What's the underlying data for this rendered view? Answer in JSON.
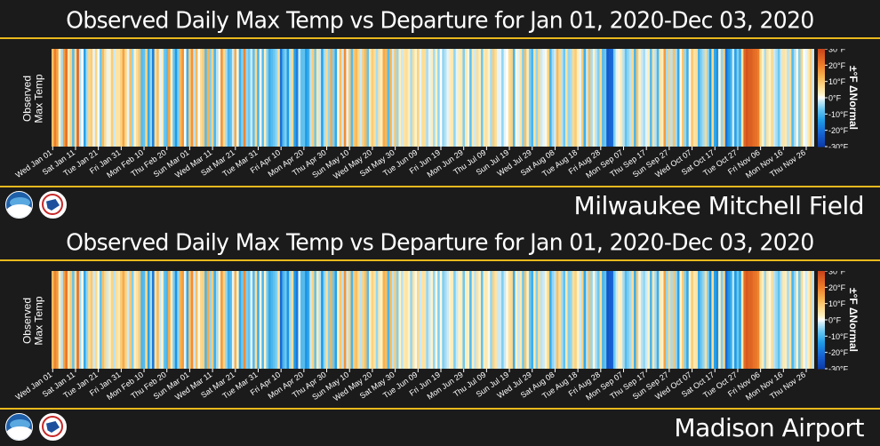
{
  "chart_data": [
    {
      "type": "heatmap",
      "title": "Observed Daily Max Temp vs Departure for Jan 01, 2020-Dec 03, 2020",
      "ylabel": [
        "Observed",
        "Max Temp"
      ],
      "station": "Milwaukee Mitchell Field",
      "x_tick_labels": [
        "Wed Jan 01",
        "Sat Jan 11",
        "Tue Jan 21",
        "Fri Jan 31",
        "Mon Feb 10",
        "Thu Feb 20",
        "Sun Mar 01",
        "Wed Mar 11",
        "Sat Mar 21",
        "Tue Mar 31",
        "Fri Apr 10",
        "Mon Apr 20",
        "Thu Apr 30",
        "Sun May 10",
        "Wed May 20",
        "Sat May 30",
        "Tue Jun 09",
        "Fri Jun 19",
        "Mon Jun 29",
        "Thu Jul 09",
        "Sun Jul 19",
        "Wed Jul 29",
        "Sat Aug 08",
        "Tue Aug 18",
        "Fri Aug 28",
        "Mon Sep 07",
        "Thu Sep 17",
        "Sun Sep 27",
        "Wed Oct 07",
        "Sat Oct 17",
        "Tue Oct 27",
        "Fri Nov 06",
        "Mon Nov 16",
        "Thu Nov 26"
      ],
      "colorbar": {
        "title": "±°F ΔNormal",
        "range": [
          -30,
          30
        ],
        "tick_labels": [
          "30°F",
          "20°F",
          "10°F",
          "0°F",
          "-10°F",
          "-20°F",
          "-30°F"
        ]
      },
      "departures": [
        11,
        20,
        15,
        2,
        -4,
        16,
        22,
        4,
        8,
        -9,
        7,
        24,
        -3,
        0,
        -13,
        -4,
        7,
        9,
        -1,
        8,
        0,
        -7,
        12,
        6,
        -1,
        2,
        9,
        -2,
        5,
        5,
        8,
        15,
        7,
        -1,
        11,
        -5,
        2,
        6,
        10,
        -9,
        -8,
        8,
        -12,
        -5,
        -18,
        6,
        11,
        -1,
        3,
        -7,
        -9,
        15,
        2,
        -7,
        -14,
        -6,
        12,
        17,
        0,
        -11,
        9,
        17,
        -3,
        12,
        0,
        6,
        9,
        -9,
        13,
        -6,
        8,
        -10,
        -3,
        1,
        17,
        7,
        -4,
        -10,
        -8,
        -2,
        14,
        1,
        -11,
        -6,
        19,
        -5,
        -7,
        -2,
        -8,
        7,
        -10,
        0,
        -9,
        3,
        -6,
        -11,
        -9,
        -7,
        -5,
        6,
        -20,
        -9,
        -6,
        -14,
        -3,
        7,
        -13,
        -18,
        -2,
        -8,
        -8,
        -14,
        -11,
        -3,
        9,
        -7,
        4,
        -2,
        -13,
        -4,
        7,
        -5,
        14,
        -6,
        -12,
        1,
        11,
        -2,
        18,
        -1,
        9,
        -9,
        10,
        12,
        7,
        -2,
        9,
        12,
        -8,
        4,
        9,
        6,
        -4,
        5,
        3,
        14,
        12,
        -9,
        13,
        -2,
        10,
        -5,
        3,
        -2,
        5,
        6,
        3,
        -4,
        6,
        2,
        8,
        -1,
        6,
        6,
        -4,
        -1,
        3,
        -4,
        2,
        -5,
        0,
        -5,
        -3,
        -1,
        3,
        4,
        -5,
        -1,
        3,
        4,
        -6,
        4,
        1,
        -8,
        4,
        -2,
        6,
        3,
        -7,
        4,
        5,
        2,
        -4,
        9,
        6,
        -1,
        -1,
        -5,
        -1,
        0,
        6,
        8,
        -10,
        1,
        -1,
        5,
        -6,
        11,
        3,
        -6,
        -10,
        5,
        -5,
        7,
        -2,
        -1,
        1,
        8,
        -10,
        -4,
        -2,
        12,
        7,
        -3,
        -7,
        5,
        -5,
        -4,
        7,
        9,
        3,
        -1,
        9,
        -11,
        -2,
        12,
        -4,
        2,
        -3,
        -6,
        7,
        -9,
        -7,
        -24,
        -22,
        -21,
        -6,
        -1,
        1,
        4,
        -3,
        -8,
        -5,
        -3,
        7,
        -10,
        10,
        2,
        -2,
        -4,
        -1,
        3,
        -9,
        5,
        -3,
        -10,
        5,
        3,
        16,
        -4,
        8,
        -3,
        11,
        -4,
        -12,
        1,
        10,
        -5,
        -11,
        1,
        10,
        5,
        6,
        -10,
        -6,
        -4,
        7,
        -5,
        -14,
        7,
        -12,
        -15,
        1,
        -5,
        9,
        -20,
        -14,
        -11,
        -2,
        -13,
        -6,
        -12,
        5,
        24,
        27,
        25,
        25,
        23,
        22,
        20,
        7,
        2,
        -4,
        5,
        2,
        7,
        -2,
        -4,
        -7,
        -2,
        5,
        4,
        -3,
        6,
        -9,
        -4,
        1,
        -6,
        8,
        0,
        -1,
        4,
        9,
        -2
      ],
      "bar_colors": [
        "#bb5f1d",
        "#fc9e70"
      ]
    },
    {
      "type": "heatmap",
      "title": "Observed Daily Max Temp vs Departure for Jan 01, 2020-Dec 03, 2020",
      "ylabel": [
        "Observed",
        "Max Temp"
      ],
      "station": "Madison Airport",
      "x_tick_labels": [
        "Wed Jan 01",
        "Sat Jan 11",
        "Tue Jan 21",
        "Fri Jan 31",
        "Mon Feb 10",
        "Thu Feb 20",
        "Sun Mar 01",
        "Wed Mar 11",
        "Sat Mar 21",
        "Tue Mar 31",
        "Fri Apr 10",
        "Mon Apr 20",
        "Thu Apr 30",
        "Sun May 10",
        "Wed May 20",
        "Sat May 30",
        "Tue Jun 09",
        "Fri Jun 19",
        "Mon Jun 29",
        "Thu Jul 09",
        "Sun Jul 19",
        "Wed Jul 29",
        "Sat Aug 08",
        "Tue Aug 18",
        "Fri Aug 28",
        "Mon Sep 07",
        "Thu Sep 17",
        "Sun Sep 27",
        "Wed Oct 07",
        "Sat Oct 17",
        "Tue Oct 27",
        "Fri Nov 06",
        "Mon Nov 16",
        "Thu Nov 26"
      ],
      "colorbar": {
        "title": "±°F ΔNormal",
        "range": [
          -30,
          30
        ],
        "tick_labels": [
          "30°F",
          "20°F",
          "10°F",
          "0°F",
          "-10°F",
          "-20°F",
          "-30°F"
        ]
      },
      "departures": [
        12,
        19,
        16,
        3,
        -3,
        15,
        21,
        5,
        9,
        -8,
        6,
        22,
        -4,
        1,
        -12,
        -5,
        6,
        10,
        -2,
        7,
        1,
        -8,
        11,
        7,
        -2,
        3,
        8,
        -3,
        6,
        4,
        9,
        14,
        8,
        -2,
        10,
        -6,
        3,
        5,
        9,
        -10,
        -9,
        7,
        -13,
        -4,
        -19,
        5,
        12,
        -2,
        2,
        -8,
        -10,
        14,
        3,
        -6,
        -15,
        -5,
        13,
        16,
        -1,
        -12,
        10,
        18,
        -2,
        11,
        1,
        7,
        8,
        -10,
        14,
        -5,
        9,
        -11,
        -4,
        2,
        16,
        8,
        -5,
        -11,
        -9,
        -1,
        13,
        2,
        -12,
        -7,
        18,
        -6,
        -8,
        -1,
        -9,
        6,
        -11,
        1,
        -10,
        2,
        -7,
        -12,
        -10,
        -8,
        -6,
        5,
        -21,
        -10,
        -7,
        -15,
        -4,
        6,
        -14,
        -19,
        -1,
        -9,
        -9,
        -15,
        -12,
        -2,
        8,
        -8,
        3,
        -3,
        -14,
        -5,
        6,
        -6,
        13,
        -7,
        -13,
        2,
        10,
        -3,
        17,
        -2,
        8,
        -10,
        9,
        11,
        6,
        -3,
        8,
        11,
        -9,
        3,
        8,
        5,
        -5,
        4,
        2,
        13,
        11,
        -10,
        12,
        -3,
        9,
        -6,
        2,
        -3,
        4,
        5,
        2,
        -5,
        5,
        1,
        7,
        -2,
        5,
        5,
        -5,
        -2,
        2,
        -5,
        1,
        -6,
        1,
        -6,
        -4,
        -2,
        2,
        3,
        -6,
        -2,
        2,
        3,
        -7,
        3,
        2,
        -9,
        3,
        -3,
        5,
        2,
        -8,
        3,
        4,
        1,
        -5,
        8,
        5,
        -2,
        -2,
        -6,
        -2,
        1,
        5,
        7,
        -11,
        2,
        -2,
        4,
        -7,
        10,
        2,
        -7,
        -11,
        4,
        -6,
        6,
        -3,
        -2,
        2,
        7,
        -11,
        -5,
        -3,
        11,
        6,
        -4,
        -8,
        4,
        -6,
        -5,
        6,
        8,
        2,
        -2,
        8,
        -12,
        -3,
        11,
        -5,
        1,
        -4,
        -7,
        6,
        -10,
        -8,
        -25,
        -23,
        -22,
        -7,
        -2,
        2,
        3,
        -4,
        -9,
        -6,
        -4,
        6,
        -11,
        9,
        1,
        -3,
        -5,
        -2,
        2,
        -10,
        4,
        -4,
        -11,
        4,
        2,
        15,
        -5,
        7,
        -4,
        10,
        -5,
        -13,
        2,
        9,
        -6,
        -12,
        2,
        9,
        4,
        5,
        -11,
        -7,
        -5,
        6,
        -6,
        -15,
        6,
        -13,
        -16,
        2,
        -6,
        8,
        -21,
        -15,
        -12,
        -3,
        -14,
        -7,
        -13,
        4,
        23,
        26,
        24,
        24,
        22,
        21,
        19,
        6,
        3,
        -5,
        4,
        1,
        6,
        -3,
        -5,
        -8,
        -3,
        4,
        3,
        -4,
        5,
        -10,
        -5,
        2,
        -7,
        7,
        1,
        -2,
        3,
        8,
        -3
      ]
    }
  ]
}
